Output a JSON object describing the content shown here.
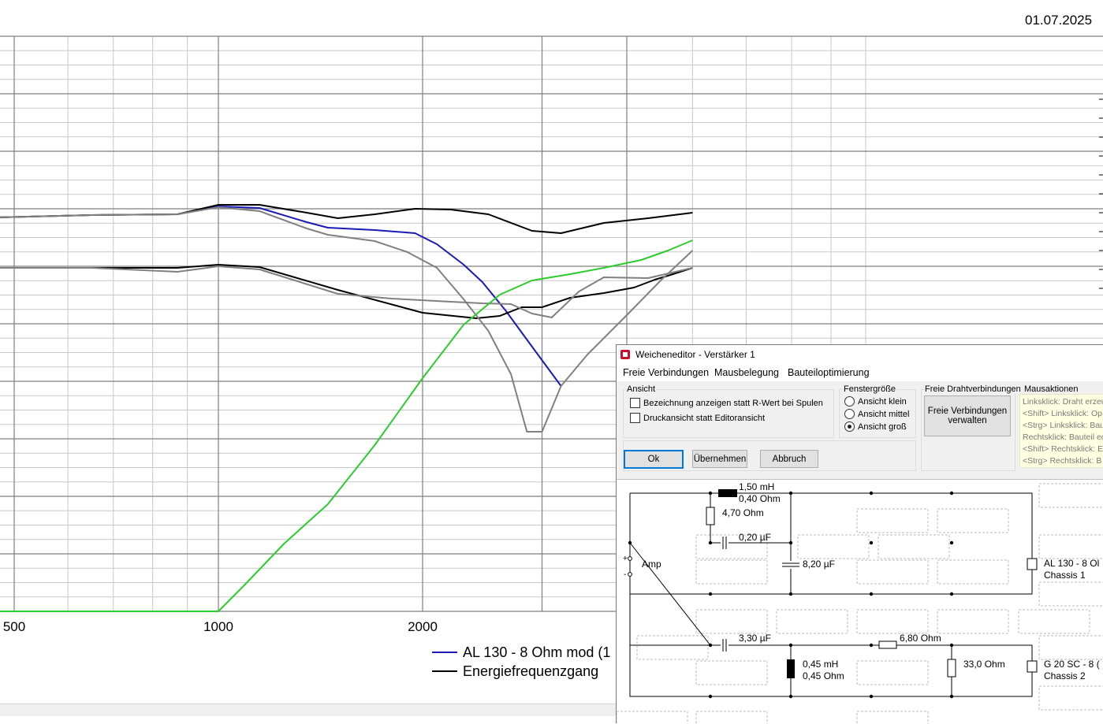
{
  "date": "01.07.2025",
  "colors": {
    "blue": "#1a1ab4",
    "black": "#000000",
    "green": "#2ccc2c",
    "grey": "#808080",
    "grid": "#7f7f7f"
  },
  "chart_data": {
    "type": "line",
    "xscale": "log",
    "x_ticks": [
      500,
      1000,
      2000
    ],
    "x_tick_labels": [
      "500",
      "1000",
      "2000"
    ],
    "xlim": [
      470,
      5000
    ],
    "series": [
      {
        "name": "AL 130 - 8 Ohm mod (1",
        "color": "#1a1ab4",
        "points": [
          [
            470,
            276
          ],
          [
            650,
            273
          ],
          [
            870,
            272
          ],
          [
            1000,
            262
          ],
          [
            1150,
            264
          ],
          [
            1350,
            282
          ],
          [
            1450,
            289
          ],
          [
            1700,
            292
          ],
          [
            1950,
            296
          ],
          [
            2100,
            310
          ],
          [
            2300,
            336
          ],
          [
            2450,
            358
          ],
          [
            2650,
            394
          ],
          [
            2900,
            440
          ],
          [
            3200,
            490
          ]
        ]
      },
      {
        "name": "Energiefrequenzgang",
        "color": "#000000",
        "points": [
          [
            470,
            276
          ],
          [
            650,
            273
          ],
          [
            870,
            272
          ],
          [
            1000,
            260
          ],
          [
            1150,
            260
          ],
          [
            1350,
            270
          ],
          [
            1500,
            277
          ],
          [
            1700,
            272
          ],
          [
            1950,
            265
          ],
          [
            2200,
            266
          ],
          [
            2500,
            272
          ],
          [
            2900,
            293
          ],
          [
            3200,
            296
          ],
          [
            3700,
            283
          ],
          [
            4300,
            277
          ],
          [
            5000,
            270
          ]
        ]
      },
      {
        "name": "",
        "color": "#000000",
        "points": [
          [
            470,
            340
          ],
          [
            650,
            340
          ],
          [
            870,
            340
          ],
          [
            1000,
            336
          ],
          [
            1150,
            339
          ],
          [
            1500,
            368
          ],
          [
            2000,
            397
          ],
          [
            2400,
            404
          ],
          [
            2600,
            401
          ],
          [
            2800,
            390
          ],
          [
            3000,
            390
          ],
          [
            3300,
            378
          ],
          [
            3700,
            372
          ],
          [
            4100,
            365
          ],
          [
            4400,
            355
          ],
          [
            4600,
            350
          ],
          [
            5000,
            340
          ]
        ]
      },
      {
        "name": "",
        "color": "#808080",
        "points": [
          [
            470,
            340
          ],
          [
            650,
            340
          ],
          [
            870,
            345
          ],
          [
            1000,
            338
          ],
          [
            1150,
            342
          ],
          [
            1500,
            373
          ],
          [
            1800,
            379
          ],
          [
            2200,
            383
          ],
          [
            2450,
            385
          ],
          [
            2700,
            386
          ],
          [
            2900,
            398
          ],
          [
            3100,
            403
          ],
          [
            3400,
            370
          ],
          [
            3700,
            352
          ],
          [
            4300,
            353
          ],
          [
            5000,
            340
          ]
        ]
      },
      {
        "name": "",
        "color": "#808080",
        "points": [
          [
            470,
            276
          ],
          [
            650,
            273
          ],
          [
            870,
            272
          ],
          [
            1000,
            263
          ],
          [
            1150,
            268
          ],
          [
            1350,
            290
          ],
          [
            1450,
            298
          ],
          [
            1700,
            306
          ],
          [
            1900,
            320
          ],
          [
            2100,
            340
          ],
          [
            2300,
            380
          ],
          [
            2500,
            420
          ],
          [
            2700,
            475
          ],
          [
            2850,
            548
          ],
          [
            3000,
            548
          ],
          [
            3200,
            490
          ],
          [
            3500,
            450
          ],
          [
            4000,
            400
          ],
          [
            4500,
            355
          ],
          [
            5000,
            318
          ]
        ]
      },
      {
        "name": "",
        "color": "#2ccc2c",
        "points": [
          [
            1000,
            776
          ],
          [
            1100,
            740
          ],
          [
            1250,
            690
          ],
          [
            1450,
            640
          ],
          [
            1700,
            565
          ],
          [
            2000,
            480
          ],
          [
            2300,
            412
          ],
          [
            2600,
            374
          ],
          [
            2900,
            356
          ],
          [
            3300,
            348
          ],
          [
            3700,
            340
          ],
          [
            4200,
            330
          ],
          [
            4600,
            318
          ],
          [
            5000,
            305
          ]
        ]
      }
    ]
  },
  "dialog": {
    "title": "Weicheneditor - Verstärker 1",
    "menu": [
      "Freie Verbindungen",
      "Mausbelegung",
      "Bauteiloptimierung"
    ],
    "ansicht": {
      "title": "Ansicht",
      "options": [
        {
          "label": "Bezeichnung anzeigen statt R-Wert bei Spulen",
          "checked": false
        },
        {
          "label": "Druckansicht statt Editoransicht",
          "checked": false
        }
      ]
    },
    "fenstergroesse": {
      "title": "Fenstergröße",
      "options": [
        {
          "label": "Ansicht klein",
          "selected": false
        },
        {
          "label": "Ansicht mittel",
          "selected": false
        },
        {
          "label": "Ansicht groß",
          "selected": true
        }
      ]
    },
    "drahtverbindungen": {
      "title": "Freie Drahtverbindungen",
      "button_line1": "Freie Verbindungen",
      "button_line2": "verwalten"
    },
    "buttons": {
      "ok": "Ok",
      "apply": "Übernehmen",
      "cancel": "Abbruch"
    },
    "mausaktionen": {
      "title": "Mausaktionen",
      "lines": [
        "Linksklick: Draht erzeu",
        "<Shift> Linksklick: Op",
        "<Strg> Linksklick: Bau",
        "Rechtsklick: Bauteil ed",
        "<Shift> Rechtsklick: E",
        "<Strg> Rechtsklick: B"
      ]
    },
    "schematic": {
      "amp": "Amp",
      "l1": "1,50 mH",
      "l1r": "0,40 Ohm",
      "r1": "4,70 Ohm",
      "c1": "0,20 µF",
      "c2": "8,20 µF",
      "d1a": "AL 130 - 8 Ol",
      "d1b": "Chassis 1",
      "c3": "3,30 µF",
      "r2": "6,80 Ohm",
      "l2": "0,45 mH",
      "l2r": "0,45 Ohm",
      "r3": "33,0 Ohm",
      "d2a": "G 20 SC - 8 (",
      "d2b": "Chassis 2",
      "plus": "+",
      "minus": "-"
    }
  }
}
